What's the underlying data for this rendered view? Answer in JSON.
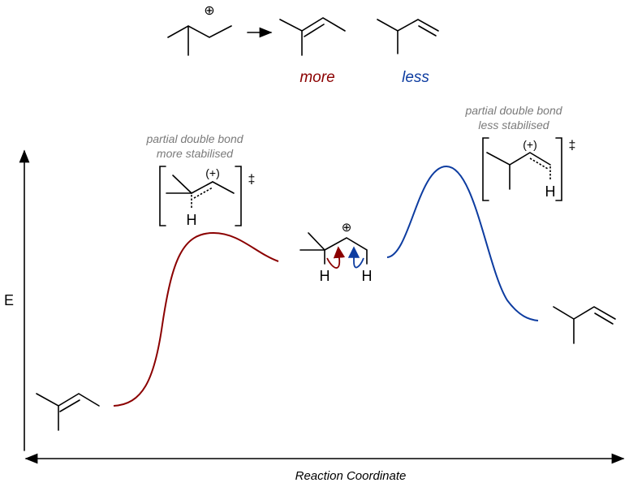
{
  "colors": {
    "more": "#8b0000",
    "less": "#0d3ca0",
    "note": "#7a7a7a"
  },
  "reaction": {
    "charge": "⊕",
    "label_more": "more",
    "label_less": "less"
  },
  "axes": {
    "y_label": "E",
    "x_label": "Reaction Coordinate"
  },
  "ts_more": {
    "note_line1": "partial double bond",
    "note_line2": "more stabilised",
    "charge": "(+)",
    "atom": "H",
    "dagger": "‡"
  },
  "ts_less": {
    "note_line1": "partial double bond",
    "note_line2": "less stabilised",
    "charge": "(+)",
    "atom": "H",
    "dagger": "‡"
  },
  "intermediate": {
    "charge": "⊕",
    "atom_left": "H",
    "atom_right": "H"
  }
}
